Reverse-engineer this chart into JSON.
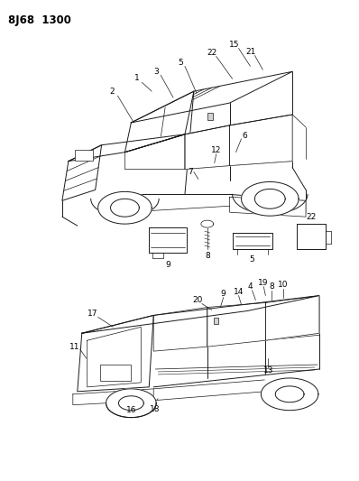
{
  "title": "8J68  1300",
  "bg_color": "#ffffff",
  "line_color": "#1a1a1a",
  "title_fontsize": 8.5,
  "label_fontsize": 6.5,
  "figsize": [
    3.98,
    5.33
  ],
  "dpi": 100
}
